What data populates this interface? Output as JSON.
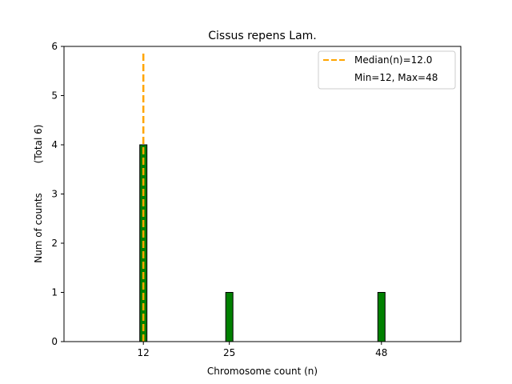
{
  "chart_data": {
    "type": "bar",
    "title": "Cissus repens Lam.",
    "xlabel": "Chromosome count (n)",
    "ylabel": "Num of counts",
    "ylabel_total": "(Total 6)",
    "x_ticks": [
      12,
      25,
      48
    ],
    "y_ticks": [
      0,
      1,
      2,
      3,
      4,
      5,
      6
    ],
    "xlim": [
      0,
      60
    ],
    "ylim": [
      0,
      6
    ],
    "bars": [
      {
        "x": 12,
        "count": 4
      },
      {
        "x": 25,
        "count": 1
      },
      {
        "x": 48,
        "count": 1
      }
    ],
    "median_line": {
      "x": 12.0,
      "label": "Median(n)=12.0"
    },
    "legend_extra": "Min=12, Max=48",
    "legend_position": "top-right",
    "grid": false,
    "colors": {
      "bar": "#008000",
      "bar_edge": "#000000",
      "median": "#FFA500"
    }
  }
}
